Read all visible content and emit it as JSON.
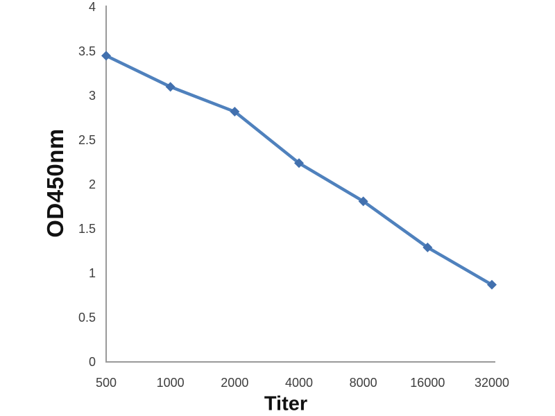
{
  "chart_data": {
    "type": "line",
    "title": "",
    "xlabel": "Titer",
    "ylabel": "OD450nm",
    "x_tick_labels": [
      "500",
      "1000",
      "2000",
      "4000",
      "8000",
      "16000",
      "32000"
    ],
    "x_values": [
      500,
      1000,
      2000,
      4000,
      8000,
      16000,
      32000
    ],
    "x_axis_note": "doubling dilution series, equal categorical spacing",
    "series": [
      {
        "name": "OD450nm vs Titer",
        "values": [
          3.45,
          3.1,
          2.82,
          2.24,
          1.81,
          1.29,
          0.87
        ]
      }
    ],
    "ylim": [
      0,
      4
    ],
    "yticks": [
      4,
      3.5,
      3,
      2.5,
      2,
      1.5,
      1,
      0.5,
      0
    ],
    "ytick_labels": [
      "4",
      "3.5",
      "3",
      "2.5",
      "2",
      "1.5",
      "1",
      "0.5",
      "0"
    ],
    "grid": false,
    "legend": "none",
    "line_color": "#4f81bd",
    "marker": "diamond",
    "marker_color": "#4270ae",
    "axis_color": "#999999",
    "tick_label_color": "#3d3d3d",
    "axis_title_color": "#111111"
  }
}
